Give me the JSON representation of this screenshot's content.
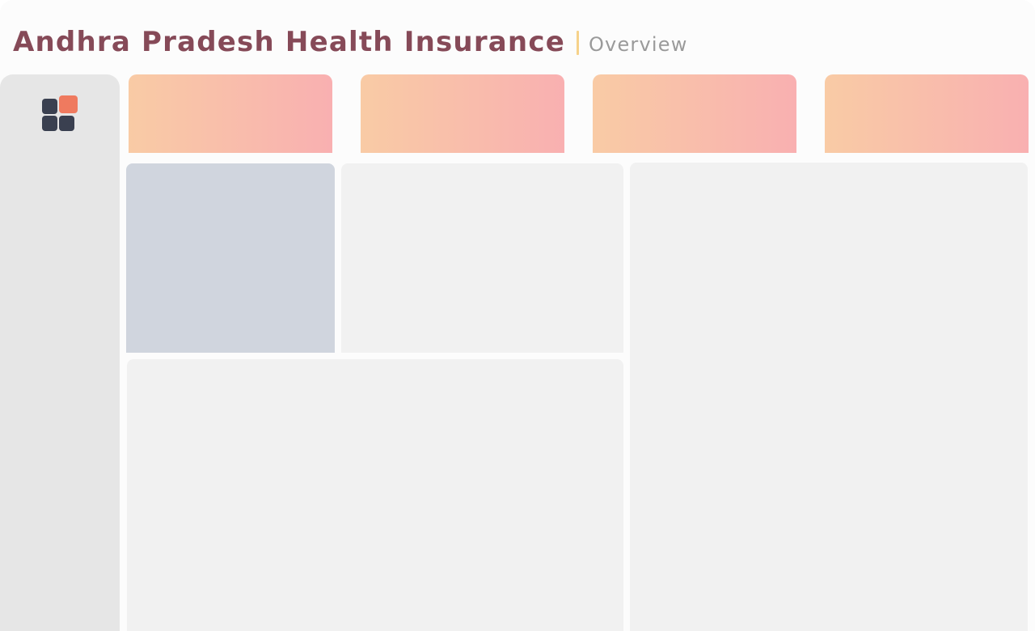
{
  "header": {
    "title": "Andhra Pradesh Health Insurance",
    "subtitle": "Overview"
  },
  "sidebar": {
    "logo_icon": "dashboard-grid-icon"
  },
  "colors": {
    "title": "#864a58",
    "divider": "#f6d28a",
    "subtitle": "#9a9a9a",
    "logo_accent": "#ef7a5f",
    "logo_dark": "#3a4050",
    "card_gradient_start": "#f9cba5",
    "card_gradient_end": "#f9b0b1",
    "panel": "#f1f1f1",
    "panel_selected": "#d0d5de",
    "sidebar": "#e6e6e6"
  },
  "kpi_cards": [
    {
      "label": ""
    },
    {
      "label": ""
    },
    {
      "label": ""
    },
    {
      "label": ""
    }
  ]
}
